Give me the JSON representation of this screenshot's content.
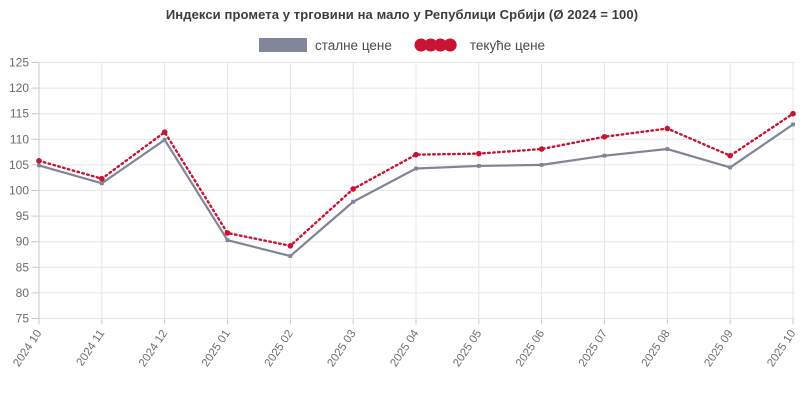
{
  "title": "Индекси промета у трговини на мало у Републици Србији (Ø 2024 = 100)",
  "legend": [
    {
      "label": "сталне цене",
      "color": "#82869a",
      "style": "solid"
    },
    {
      "label": "текуће цене",
      "color": "#c81332",
      "style": "dotted"
    }
  ],
  "colors": {
    "constant_prices": "#7f8496",
    "current_prices": "#c81332",
    "gridline": "#e6e6e6",
    "axis": "#c9c9c9",
    "axis_text": "#6d6d6d",
    "title_text": "#3c3c3c"
  },
  "chart_data": {
    "type": "line",
    "title": "Индекси промета у трговини на мало у Републици Србији (Ø 2024 = 100)",
    "categories": [
      "2024 10",
      "2024 11",
      "2024 12",
      "2025 01",
      "2025 02",
      "2025 03",
      "2025 04",
      "2025 05",
      "2025 06",
      "2025 07",
      "2025 08",
      "2025 09",
      "2025 10"
    ],
    "series": [
      {
        "name": "сталне цене",
        "color": "#7f8496",
        "line_style": "solid",
        "values": [
          104.9,
          101.4,
          109.9,
          90.3,
          87.2,
          97.8,
          104.3,
          104.8,
          105.0,
          106.8,
          108.1,
          104.5,
          112.9
        ]
      },
      {
        "name": "текуће цене",
        "color": "#c81332",
        "line_style": "dotted",
        "values": [
          105.8,
          102.3,
          111.4,
          91.7,
          89.2,
          100.3,
          107.0,
          107.2,
          108.1,
          110.5,
          112.1,
          106.8,
          115.0
        ]
      }
    ],
    "xlabel": "",
    "ylabel": "",
    "ylim": [
      75,
      125
    ],
    "y_tick_step": 5,
    "grid": true,
    "legend_position": "top"
  }
}
